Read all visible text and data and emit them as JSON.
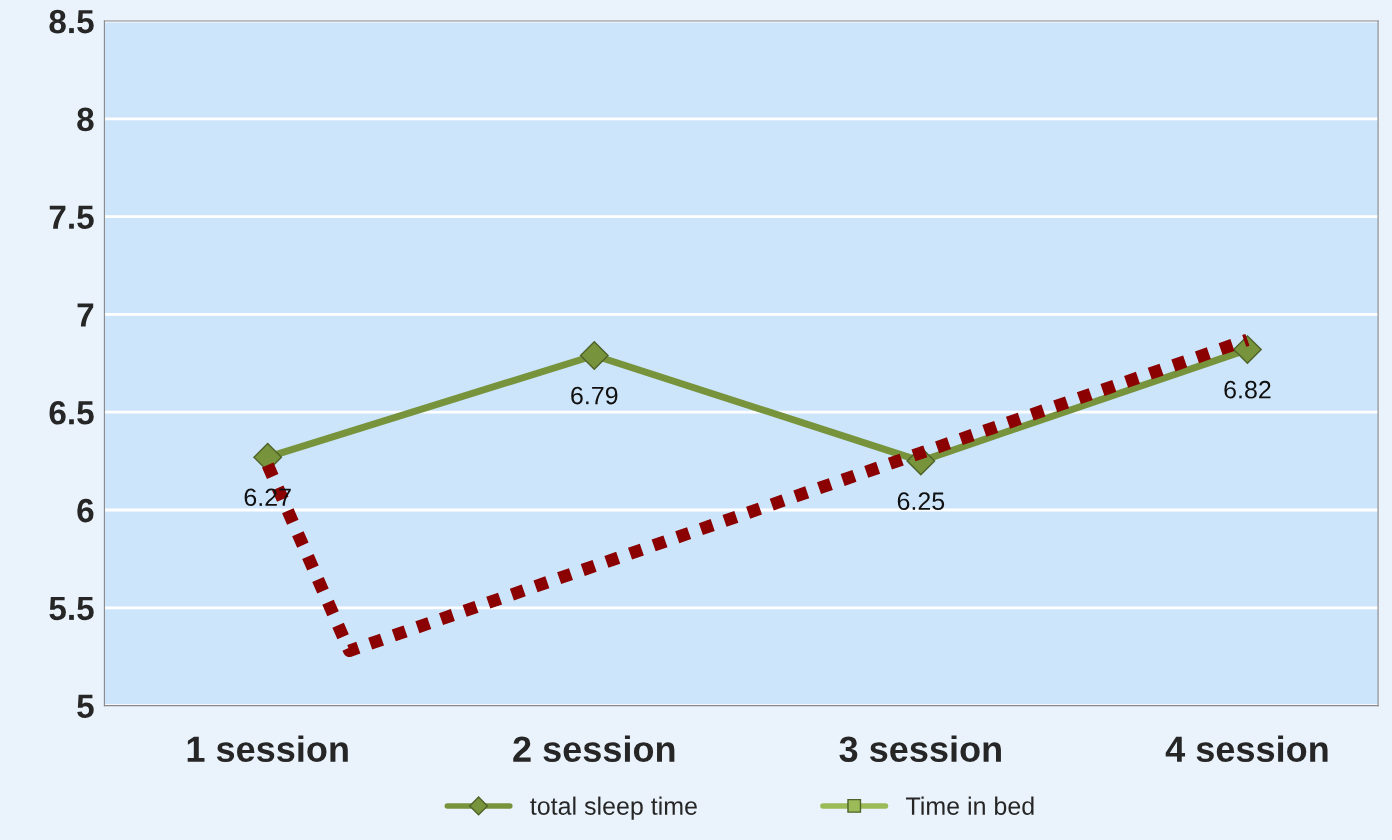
{
  "chart_data": {
    "type": "line",
    "x": [
      1,
      2,
      3,
      4
    ],
    "xlim": [
      0.5,
      4.4
    ],
    "xticks": [
      {
        "value": 1,
        "label": "1 session"
      },
      {
        "value": 2,
        "label": "2 session"
      },
      {
        "value": 3,
        "label": "3 session"
      },
      {
        "value": 4,
        "label": "4 session"
      }
    ],
    "series": [
      {
        "name": "total sleep time",
        "color": "#77933c",
        "marker": "diamond",
        "line_style": "solid",
        "values": [
          6.27,
          6.79,
          6.25,
          6.82
        ],
        "value_labels": [
          "6.27",
          "6.79",
          "6.25",
          "6.82"
        ]
      },
      {
        "name": "Time in bed",
        "color": "#9bbb59",
        "marker": "square",
        "line_style": "solid",
        "values": [
          null,
          null,
          null,
          null
        ]
      },
      {
        "color": "#8b0000",
        "marker": "none",
        "line_style": "dotted",
        "x": [
          1,
          1.25,
          4
        ],
        "values": [
          6.23,
          5.28,
          6.87
        ]
      }
    ],
    "ylim": [
      5,
      8.5
    ],
    "yticks": [
      5,
      5.5,
      6,
      6.5,
      7,
      7.5,
      8,
      8.5
    ],
    "grid": "y",
    "legend": "bottom"
  }
}
